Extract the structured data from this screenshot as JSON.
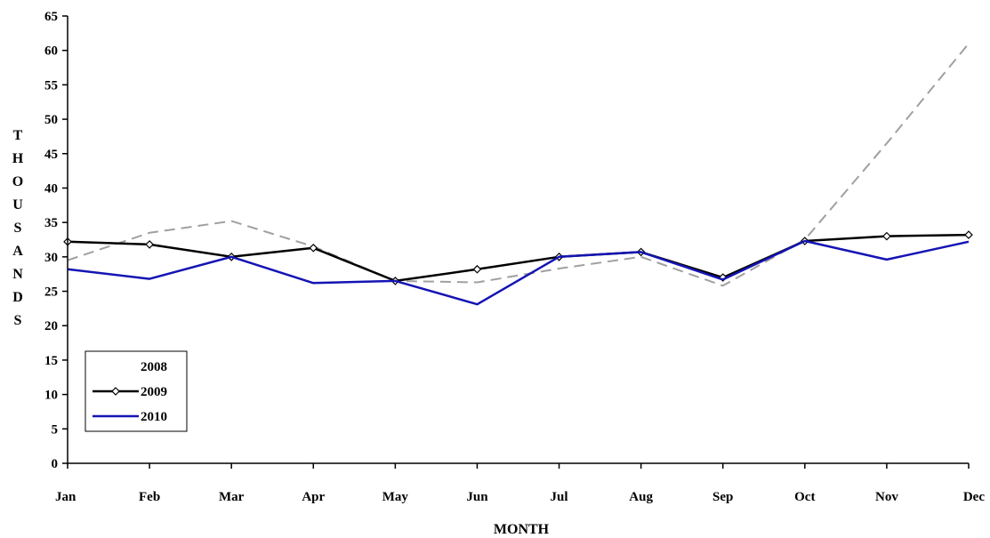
{
  "chart_data": {
    "type": "line",
    "categories": [
      "Jan",
      "Feb",
      "Mar",
      "Apr",
      "May",
      "Jun",
      "Jul",
      "Aug",
      "Sep",
      "Oct",
      "Nov",
      "Dec"
    ],
    "ylabel": "THOUSANDS",
    "xlabel": "MONTH",
    "ylim": [
      0,
      65
    ],
    "yticks": [
      0,
      5,
      10,
      15,
      20,
      25,
      30,
      35,
      40,
      45,
      50,
      55,
      60,
      65
    ],
    "grid": false,
    "legend_position": "bottom-left",
    "series": [
      {
        "name": "2008",
        "color": "#a0a0a0",
        "style": "dashed",
        "values": [
          29.5,
          33.5,
          35.2,
          31.5,
          26.5,
          26.3,
          28.3,
          30.0,
          25.8,
          32.5,
          46.5,
          61.0
        ]
      },
      {
        "name": "2009",
        "color": "#000000",
        "style": "solid-markers",
        "values": [
          32.2,
          31.8,
          30.0,
          31.3,
          26.5,
          28.2,
          30.0,
          30.7,
          27.0,
          32.3,
          33.0,
          33.2
        ]
      },
      {
        "name": "2010",
        "color": "#1414b4",
        "style": "solid",
        "values": [
          28.2,
          26.8,
          30.0,
          26.2,
          26.5,
          23.1,
          30.0,
          30.7,
          26.7,
          32.3,
          29.6,
          32.2
        ]
      }
    ]
  }
}
